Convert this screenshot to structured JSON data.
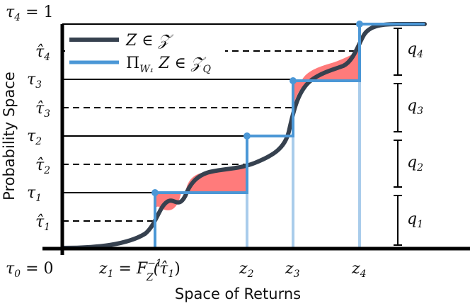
{
  "title": "",
  "axis": {
    "xlabel": "Space of Returns",
    "ylabel": "Probability Space"
  },
  "colors": {
    "cdf": "#36414f",
    "projection": "#4b97d6",
    "projection_light": "#a9cceb",
    "fill": "#ff7b7b",
    "frame": "#000000"
  },
  "legend": [
    {
      "id": "cdf",
      "label": "Z ∈ 𝒵"
    },
    {
      "id": "proj",
      "label": "Π",
      "sub": "W₁",
      "rest": " Z ∈ 𝒵",
      "rest_sub": "Q"
    }
  ],
  "tau": {
    "top": {
      "sym": "τ",
      "sub": "4",
      "tail": " = 1"
    },
    "bottom": {
      "sym": "τ",
      "sub": "0",
      "tail": " = 0"
    },
    "levels": [
      {
        "sym": "τ",
        "sub": "3"
      },
      {
        "sym": "τ",
        "sub": "2"
      },
      {
        "sym": "τ",
        "sub": "1"
      }
    ],
    "hats": [
      {
        "sym": "τ̂",
        "sub": "4"
      },
      {
        "sym": "τ̂",
        "sub": "3"
      },
      {
        "sym": "τ̂",
        "sub": "2"
      },
      {
        "sym": "τ̂",
        "sub": "1"
      }
    ]
  },
  "z_labels": [
    {
      "main": "z",
      "sub": "1",
      "tail": " = F",
      "sup": "−1",
      "sub2": "Z",
      "arg": "(τ̂",
      "arg_sub": "1",
      "close": ")"
    },
    {
      "main": "z",
      "sub": "2"
    },
    {
      "main": "z",
      "sub": "3"
    },
    {
      "main": "z",
      "sub": "4"
    }
  ],
  "q_labels": [
    {
      "sym": "q",
      "sub": "4"
    },
    {
      "sym": "q",
      "sub": "3"
    },
    {
      "sym": "q",
      "sub": "2"
    },
    {
      "sym": "q",
      "sub": "1"
    }
  ]
}
